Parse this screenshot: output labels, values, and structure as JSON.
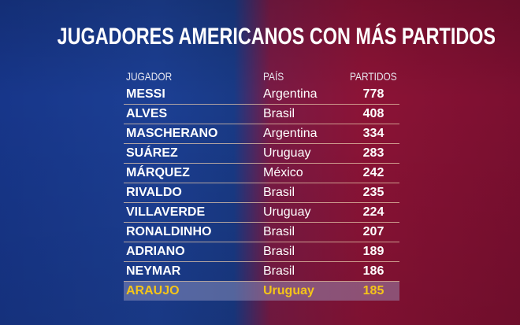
{
  "title": "JUGADORES AMERICANOS CON MÁS PARTIDOS",
  "headers": {
    "player": "JUGADOR",
    "country": "PAÍS",
    "matches": "PARTIDOS"
  },
  "highlight_color": "#f5c518",
  "rows": [
    {
      "player": "MESSI",
      "country": "Argentina",
      "matches": "778"
    },
    {
      "player": "ALVES",
      "country": "Brasil",
      "matches": "408"
    },
    {
      "player": "MASCHERANO",
      "country": "Argentina",
      "matches": "334"
    },
    {
      "player": "SUÁREZ",
      "country": "Uruguay",
      "matches": "283"
    },
    {
      "player": "MÁRQUEZ",
      "country": "México",
      "matches": "242"
    },
    {
      "player": "RIVALDO",
      "country": "Brasil",
      "matches": "235"
    },
    {
      "player": "VILLAVERDE",
      "country": "Uruguay",
      "matches": "224"
    },
    {
      "player": "RONALDINHO",
      "country": "Brasil",
      "matches": "207"
    },
    {
      "player": "ADRIANO",
      "country": "Brasil",
      "matches": "189"
    },
    {
      "player": "NEYMAR",
      "country": "Brasil",
      "matches": "186"
    },
    {
      "player": "ARAUJO",
      "country": "Uruguay",
      "matches": "185",
      "highlighted": true
    }
  ]
}
